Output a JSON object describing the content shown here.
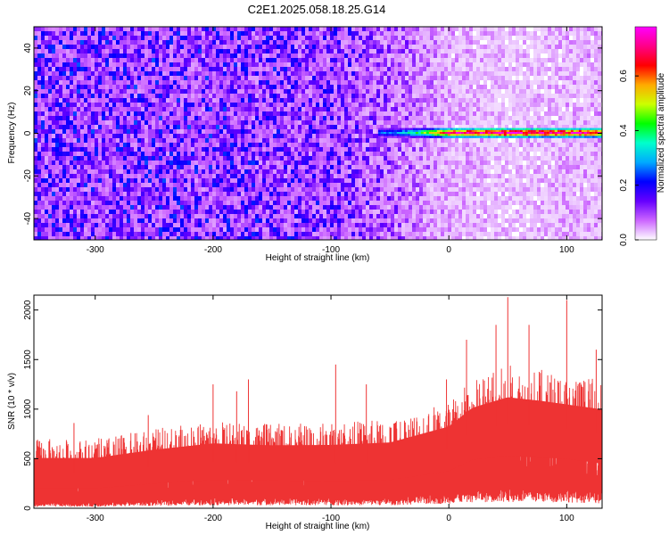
{
  "page_title": "C2E1.2025.058.18.25.G14",
  "chart_data": [
    {
      "type": "heatmap",
      "title": "C2E1.2025.058.18.25.G14",
      "xlabel": "Height of straight line (km)",
      "ylabel": "Frequency (Hz)",
      "xlim": [
        -352,
        130
      ],
      "ylim": [
        -50,
        50
      ],
      "xticks": [
        -300,
        -200,
        -100,
        0,
        100
      ],
      "yticks": [
        -40,
        -20,
        0,
        20,
        40
      ],
      "xtick_labels": [
        "-300",
        "-200",
        "-100",
        "0",
        "100"
      ],
      "ytick_labels": [
        "-40",
        "-20",
        "0",
        "20",
        "40"
      ],
      "colorbar": {
        "label": "Normalized spectral amplitude",
        "range": [
          0.0,
          0.78
        ],
        "ticks": [
          0.0,
          0.2,
          0.4,
          0.6
        ],
        "tick_labels": [
          "0.0",
          "0.2",
          "0.4",
          "0.6"
        ],
        "colors": [
          "#ffffff",
          "#cc66ff",
          "#6600ff",
          "#0000ff",
          "#00aaff",
          "#00ffcc",
          "#00ff00",
          "#ccff00",
          "#ffaa00",
          "#ff0000",
          "#ff0088",
          "#ff00ff"
        ]
      },
      "signal_band": {
        "frequency": 0,
        "x_start": -60,
        "x_end": 130,
        "amplitude_profile": [
          {
            "x": -60,
            "amp": 0.25
          },
          {
            "x": -40,
            "amp": 0.3
          },
          {
            "x": -20,
            "amp": 0.45
          },
          {
            "x": 0,
            "amp": 0.7
          },
          {
            "x": 50,
            "amp": 0.75
          },
          {
            "x": 100,
            "amp": 0.72
          },
          {
            "x": 130,
            "amp": 0.68
          }
        ]
      },
      "noise_background": [
        {
          "x": -352,
          "amp": 0.12
        },
        {
          "x": -200,
          "amp": 0.12
        },
        {
          "x": -100,
          "amp": 0.11
        },
        {
          "x": -50,
          "amp": 0.08
        },
        {
          "x": 0,
          "amp": 0.04
        },
        {
          "x": 50,
          "amp": 0.03
        },
        {
          "x": 130,
          "amp": 0.04
        }
      ]
    },
    {
      "type": "line",
      "xlabel": "Height of straight line (km)",
      "ylabel": "SNR (10 * v/v)",
      "xlim": [
        -352,
        130
      ],
      "ylim": [
        0,
        2150
      ],
      "xticks": [
        -300,
        -200,
        -100,
        0,
        100
      ],
      "yticks": [
        0,
        500,
        1000,
        1500,
        2000
      ],
      "xtick_labels": [
        "-300",
        "-200",
        "-100",
        "0",
        "100"
      ],
      "ytick_labels": [
        "0",
        "500",
        "1000",
        "1500",
        "2000"
      ],
      "color": "#ee3333",
      "envelope": [
        {
          "x": -352,
          "low": 50,
          "mid": 350,
          "high": 700
        },
        {
          "x": -300,
          "low": 50,
          "mid": 350,
          "high": 700
        },
        {
          "x": -250,
          "low": 80,
          "mid": 420,
          "high": 800
        },
        {
          "x": -200,
          "low": 100,
          "mid": 470,
          "high": 880
        },
        {
          "x": -150,
          "low": 100,
          "mid": 460,
          "high": 850
        },
        {
          "x": -100,
          "low": 100,
          "mid": 450,
          "high": 870
        },
        {
          "x": -50,
          "low": 100,
          "mid": 470,
          "high": 900
        },
        {
          "x": 0,
          "low": 150,
          "mid": 600,
          "high": 1100
        },
        {
          "x": 20,
          "low": 200,
          "mid": 780,
          "high": 1300
        },
        {
          "x": 50,
          "low": 200,
          "mid": 850,
          "high": 1450
        },
        {
          "x": 80,
          "low": 200,
          "mid": 820,
          "high": 1400
        },
        {
          "x": 100,
          "low": 200,
          "mid": 800,
          "high": 1350
        },
        {
          "x": 130,
          "low": 150,
          "mid": 750,
          "high": 1300
        }
      ],
      "peaks": [
        {
          "x": -318,
          "y": 860
        },
        {
          "x": -255,
          "y": 940
        },
        {
          "x": -200,
          "y": 1250
        },
        {
          "x": -180,
          "y": 1180
        },
        {
          "x": -170,
          "y": 1300
        },
        {
          "x": -96,
          "y": 1450
        },
        {
          "x": -70,
          "y": 1250
        },
        {
          "x": -2,
          "y": 1300
        },
        {
          "x": 15,
          "y": 1700
        },
        {
          "x": 40,
          "y": 1850
        },
        {
          "x": 50,
          "y": 2130
        },
        {
          "x": 68,
          "y": 1850
        },
        {
          "x": 100,
          "y": 2100
        },
        {
          "x": 125,
          "y": 1600
        }
      ]
    }
  ]
}
